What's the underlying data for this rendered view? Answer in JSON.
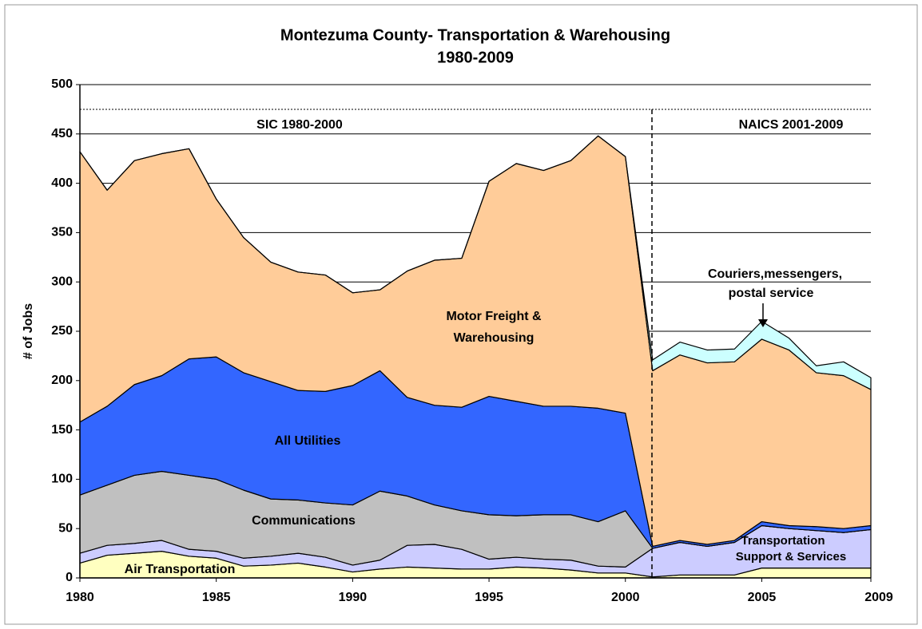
{
  "chart_data": {
    "type": "stacked_area",
    "title": "Montezuma County- Transportation & Warehousing",
    "subtitle": "1980-2009",
    "y_label": "# of Jobs",
    "x": [
      1980,
      1981,
      1982,
      1983,
      1984,
      1985,
      1986,
      1987,
      1988,
      1989,
      1990,
      1991,
      1992,
      1993,
      1994,
      1995,
      1996,
      1997,
      1998,
      1999,
      2000,
      2001,
      2002,
      2003,
      2004,
      2005,
      2006,
      2007,
      2008,
      2009
    ],
    "xlim": [
      1980,
      2009
    ],
    "xticks": [
      1980,
      1985,
      1990,
      1995,
      2000,
      2005,
      2009
    ],
    "ylim": [
      0,
      500
    ],
    "yticks": [
      0,
      50,
      100,
      150,
      200,
      250,
      300,
      350,
      400,
      450,
      500
    ],
    "grid": true,
    "series": [
      {
        "name": "Air Transportation",
        "color": "#ffffc0",
        "values": [
          15,
          23,
          25,
          27,
          22,
          20,
          12,
          13,
          15,
          11,
          6,
          9,
          11,
          10,
          9,
          9,
          11,
          10,
          8,
          5,
          5,
          1,
          3,
          3,
          3,
          10,
          10,
          10,
          10,
          10
        ]
      },
      {
        "name": "Transportation Support & Services",
        "color": "#ccccff",
        "values": [
          10,
          10,
          10,
          11,
          7,
          7,
          8,
          9,
          10,
          10,
          7,
          9,
          22,
          24,
          20,
          10,
          10,
          9,
          10,
          7,
          6,
          29,
          33,
          29,
          33,
          43,
          40,
          38,
          36,
          39
        ]
      },
      {
        "name": "Communications",
        "color": "#c0c0c0",
        "values": [
          59,
          61,
          69,
          70,
          75,
          73,
          69,
          58,
          54,
          55,
          61,
          70,
          50,
          40,
          39,
          45,
          42,
          45,
          46,
          45,
          57,
          0,
          0,
          0,
          0,
          0,
          0,
          0,
          0,
          0
        ]
      },
      {
        "name": "All Utilities",
        "color": "#3366ff",
        "values": [
          74,
          80,
          92,
          97,
          118,
          124,
          119,
          119,
          111,
          113,
          121,
          122,
          100,
          101,
          105,
          120,
          116,
          110,
          110,
          115,
          99,
          2,
          2,
          2,
          2,
          4,
          3,
          4,
          4,
          4
        ]
      },
      {
        "name": "Motor Freight & Warehousing",
        "color": "#ffcc99",
        "values": [
          274,
          219,
          227,
          225,
          213,
          160,
          137,
          121,
          120,
          118,
          94,
          82,
          128,
          147,
          151,
          218,
          241,
          239,
          249,
          276,
          260,
          178,
          188,
          184,
          181,
          185,
          178,
          156,
          155,
          138
        ]
      },
      {
        "name": "Couriers, messengers, postal service",
        "color": "#ccffff",
        "values": [
          0,
          0,
          0,
          0,
          0,
          0,
          0,
          0,
          0,
          0,
          0,
          0,
          0,
          0,
          0,
          0,
          0,
          0,
          0,
          0,
          0,
          11,
          13,
          13,
          13,
          18,
          12,
          7,
          14,
          12
        ]
      }
    ],
    "annotations": [
      "SIC 1980-2000",
      "NAICS 2001-2009",
      "Couriers,messengers,",
      "postal service",
      "Motor Freight &",
      "Warehousing",
      "All Utilities",
      "Communications",
      "Transportation",
      "Support & Services",
      "Air Transportation"
    ]
  }
}
